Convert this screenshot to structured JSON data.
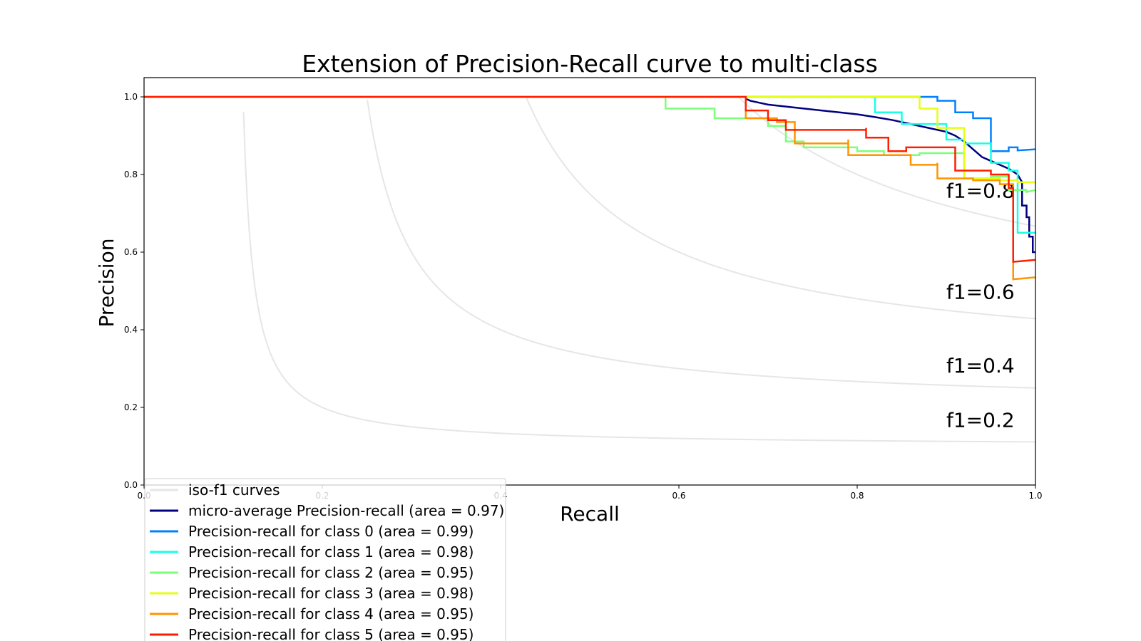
{
  "chart_data": {
    "type": "line",
    "title": "Extension of Precision-Recall curve to multi-class",
    "xlabel": "Recall",
    "ylabel": "Precision",
    "xlim": [
      0.0,
      1.0
    ],
    "ylim": [
      0.0,
      1.05
    ],
    "x_ticks": [
      "0.0",
      "0.2",
      "0.4",
      "0.6",
      "0.8",
      "1.0"
    ],
    "y_ticks": [
      "0.0",
      "0.2",
      "0.4",
      "0.6",
      "0.8",
      "1.0"
    ],
    "grid": false,
    "legend_placement": "lower-left",
    "iso_f1": [
      {
        "f1": 0.2,
        "label": "f1=0.2",
        "label_y": 0.15
      },
      {
        "f1": 0.4,
        "label": "f1=0.4",
        "label_y": 0.29
      },
      {
        "f1": 0.6,
        "label": "f1=0.6",
        "label_y": 0.48
      },
      {
        "f1": 0.8,
        "label": "f1=0.8",
        "label_y": 0.74
      }
    ],
    "iso_color": "#e6e6e6",
    "legend": [
      {
        "name": "iso-f1 curves",
        "color": "#e6e6e6"
      },
      {
        "name": "micro-average Precision-recall (area = 0.97)",
        "color": "#000080"
      },
      {
        "name": "Precision-recall for class 0 (area = 0.99)",
        "color": "#0080ff"
      },
      {
        "name": "Precision-recall for class 1 (area = 0.98)",
        "color": "#18ffe5"
      },
      {
        "name": "Precision-recall for class 2 (area = 0.95)",
        "color": "#7cff79"
      },
      {
        "name": "Precision-recall for class 3 (area = 0.98)",
        "color": "#e5ff18"
      },
      {
        "name": "Precision-recall for class 4 (area = 0.95)",
        "color": "#ff9400"
      },
      {
        "name": "Precision-recall for class 5 (area = 0.95)",
        "color": "#ff1e00"
      }
    ],
    "series": [
      {
        "name": "micro-average Precision-recall (area = 0.97)",
        "color": "#000080",
        "points": [
          [
            0,
            1.0
          ],
          [
            0.675,
            1.0
          ],
          [
            0.675,
            0.995
          ],
          [
            0.68,
            0.99
          ],
          [
            0.69,
            0.985
          ],
          [
            0.7,
            0.98
          ],
          [
            0.72,
            0.975
          ],
          [
            0.74,
            0.97
          ],
          [
            0.76,
            0.965
          ],
          [
            0.78,
            0.96
          ],
          [
            0.8,
            0.955
          ],
          [
            0.82,
            0.948
          ],
          [
            0.84,
            0.94
          ],
          [
            0.86,
            0.93
          ],
          [
            0.88,
            0.92
          ],
          [
            0.9,
            0.91
          ],
          [
            0.91,
            0.9
          ],
          [
            0.92,
            0.885
          ],
          [
            0.93,
            0.865
          ],
          [
            0.94,
            0.845
          ],
          [
            0.95,
            0.835
          ],
          [
            0.96,
            0.825
          ],
          [
            0.97,
            0.815
          ],
          [
            0.98,
            0.8
          ],
          [
            0.985,
            0.78
          ],
          [
            0.985,
            0.72
          ],
          [
            0.99,
            0.72
          ],
          [
            0.99,
            0.69
          ],
          [
            0.993,
            0.69
          ],
          [
            0.993,
            0.64
          ],
          [
            0.997,
            0.64
          ],
          [
            0.997,
            0.6
          ],
          [
            1.0,
            0.6
          ]
        ]
      },
      {
        "name": "Precision-recall for class 0 (area = 0.99)",
        "color": "#0080ff",
        "points": [
          [
            0,
            1.0
          ],
          [
            0.87,
            1.0
          ],
          [
            0.89,
            1.0
          ],
          [
            0.89,
            0.99
          ],
          [
            0.91,
            0.99
          ],
          [
            0.91,
            0.96
          ],
          [
            0.93,
            0.96
          ],
          [
            0.93,
            0.945
          ],
          [
            0.95,
            0.945
          ],
          [
            0.95,
            0.86
          ],
          [
            0.97,
            0.86
          ],
          [
            0.97,
            0.87
          ],
          [
            0.98,
            0.87
          ],
          [
            0.98,
            0.862
          ],
          [
            1.0,
            0.865
          ]
        ]
      },
      {
        "name": "Precision-recall for class 1 (area = 0.98)",
        "color": "#18ffe5",
        "points": [
          [
            0,
            1.0
          ],
          [
            0.82,
            1.0
          ],
          [
            0.82,
            0.96
          ],
          [
            0.85,
            0.96
          ],
          [
            0.85,
            0.93
          ],
          [
            0.9,
            0.93
          ],
          [
            0.9,
            0.89
          ],
          [
            0.92,
            0.89
          ],
          [
            0.92,
            0.88
          ],
          [
            0.95,
            0.88
          ],
          [
            0.95,
            0.83
          ],
          [
            0.97,
            0.83
          ],
          [
            0.97,
            0.81
          ],
          [
            0.98,
            0.81
          ],
          [
            0.98,
            0.65
          ],
          [
            0.99,
            0.65
          ],
          [
            0.99,
            0.65
          ],
          [
            1.0,
            0.65
          ]
        ]
      },
      {
        "name": "Precision-recall for class 2 (area = 0.95)",
        "color": "#7cff79",
        "points": [
          [
            0,
            1.0
          ],
          [
            0.585,
            1.0
          ],
          [
            0.585,
            0.97
          ],
          [
            0.64,
            0.97
          ],
          [
            0.64,
            0.945
          ],
          [
            0.7,
            0.945
          ],
          [
            0.7,
            0.925
          ],
          [
            0.72,
            0.925
          ],
          [
            0.72,
            0.885
          ],
          [
            0.74,
            0.885
          ],
          [
            0.74,
            0.87
          ],
          [
            0.8,
            0.87
          ],
          [
            0.8,
            0.86
          ],
          [
            0.83,
            0.86
          ],
          [
            0.83,
            0.85
          ],
          [
            0.87,
            0.85
          ],
          [
            0.87,
            0.855
          ],
          [
            0.92,
            0.855
          ],
          [
            0.92,
            0.79
          ],
          [
            0.95,
            0.79
          ],
          [
            0.95,
            0.795
          ],
          [
            0.97,
            0.795
          ],
          [
            0.97,
            0.76
          ],
          [
            0.99,
            0.76
          ],
          [
            0.99,
            0.755
          ],
          [
            1.0,
            0.76
          ]
        ]
      },
      {
        "name": "Precision-recall for class 3 (area = 0.98)",
        "color": "#e5ff18",
        "points": [
          [
            0,
            1.0
          ],
          [
            0.87,
            1.0
          ],
          [
            0.87,
            0.97
          ],
          [
            0.89,
            0.97
          ],
          [
            0.89,
            0.92
          ],
          [
            0.92,
            0.92
          ],
          [
            0.92,
            0.79
          ],
          [
            0.96,
            0.79
          ],
          [
            0.96,
            0.785
          ],
          [
            0.98,
            0.785
          ],
          [
            0.98,
            0.78
          ],
          [
            1.0,
            0.78
          ]
        ]
      },
      {
        "name": "Precision-recall for class 4 (area = 0.95)",
        "color": "#ff9400",
        "points": [
          [
            0,
            1.0
          ],
          [
            0.675,
            1.0
          ],
          [
            0.675,
            0.945
          ],
          [
            0.71,
            0.945
          ],
          [
            0.71,
            0.935
          ],
          [
            0.73,
            0.935
          ],
          [
            0.73,
            0.88
          ],
          [
            0.79,
            0.88
          ],
          [
            0.79,
            0.89
          ],
          [
            0.79,
            0.85
          ],
          [
            0.86,
            0.85
          ],
          [
            0.86,
            0.825
          ],
          [
            0.89,
            0.825
          ],
          [
            0.89,
            0.83
          ],
          [
            0.89,
            0.79
          ],
          [
            0.93,
            0.79
          ],
          [
            0.93,
            0.785
          ],
          [
            0.96,
            0.785
          ],
          [
            0.96,
            0.775
          ],
          [
            0.975,
            0.775
          ],
          [
            0.975,
            0.53
          ],
          [
            1.0,
            0.535
          ]
        ]
      },
      {
        "name": "Precision-recall for class 5 (area = 0.95)",
        "color": "#ff1e00",
        "points": [
          [
            0,
            1.0
          ],
          [
            0.675,
            1.0
          ],
          [
            0.675,
            0.965
          ],
          [
            0.7,
            0.965
          ],
          [
            0.7,
            0.94
          ],
          [
            0.72,
            0.94
          ],
          [
            0.72,
            0.915
          ],
          [
            0.81,
            0.915
          ],
          [
            0.81,
            0.92
          ],
          [
            0.81,
            0.895
          ],
          [
            0.835,
            0.895
          ],
          [
            0.835,
            0.86
          ],
          [
            0.855,
            0.86
          ],
          [
            0.855,
            0.87
          ],
          [
            0.91,
            0.87
          ],
          [
            0.91,
            0.81
          ],
          [
            0.95,
            0.81
          ],
          [
            0.95,
            0.8
          ],
          [
            0.97,
            0.8
          ],
          [
            0.97,
            0.765
          ],
          [
            0.975,
            0.765
          ],
          [
            0.975,
            0.575
          ],
          [
            1.0,
            0.58
          ]
        ]
      }
    ]
  }
}
